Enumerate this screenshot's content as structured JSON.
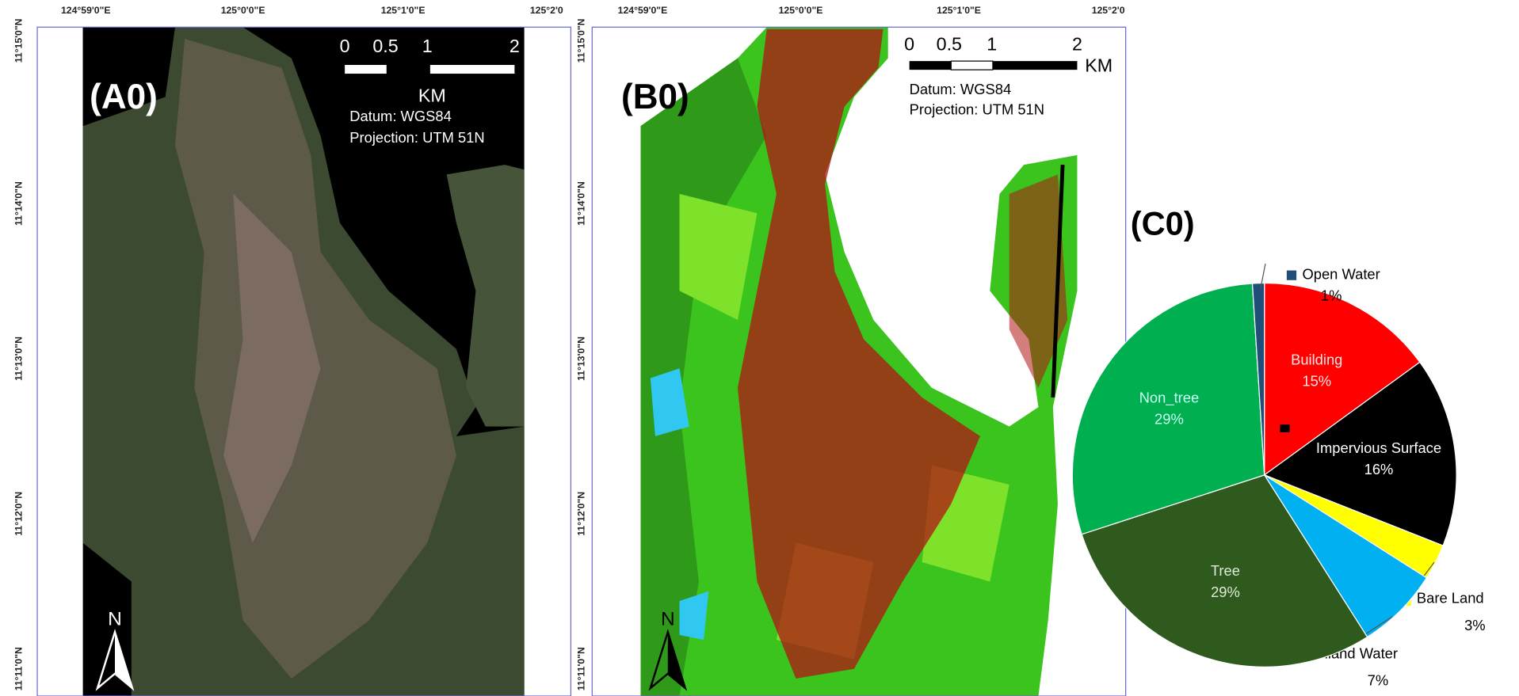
{
  "maps": [
    {
      "label": "(A0)",
      "x_labels": [
        "124°59'0\"E",
        "125°0'0\"E",
        "125°1'0\"E",
        "125°2'0"
      ],
      "y_labels": [
        "11°15'0\"N",
        "11°14'0\"N",
        "11°13'0\"N",
        "11°12'0\"N",
        "11°11'0\"N"
      ],
      "scale_labels": [
        "0",
        "0.5",
        "1",
        "2"
      ],
      "scale_unit": "KM",
      "datum": "Datum: WGS84",
      "projection": "Projection: UTM 51N",
      "north": "N"
    },
    {
      "label": "(B0)",
      "x_labels": [
        "124°59'0\"E",
        "125°0'0\"E",
        "125°1'0\"E",
        "125°2'0"
      ],
      "y_labels": [
        "11°15'0\"N",
        "11°14'0\"N",
        "11°13'0\"N",
        "11°12'0\"N",
        "11°11'0\"N"
      ],
      "scale_labels": [
        "0",
        "0.5",
        "1",
        "2"
      ],
      "scale_unit": "KM",
      "datum": "Datum: WGS84",
      "projection": "Projection: UTM 51N",
      "north": "N"
    }
  ],
  "chart_data": {
    "type": "pie",
    "title": "(C0)",
    "categories": [
      "Building",
      "Impervious Surface",
      "Bare Land",
      "Inland Water",
      "Tree",
      "Non_tree",
      "Open Water"
    ],
    "values": [
      15,
      16,
      3,
      7,
      29,
      29,
      1
    ],
    "value_labels": [
      "15%",
      "16%",
      "3%",
      "7%",
      "29%",
      "29%",
      "1%"
    ],
    "colors": [
      "#ff0000",
      "#000000",
      "#ffff00",
      "#00b0f0",
      "#2f5a1e",
      "#00b050",
      "#1f4e79"
    ]
  }
}
